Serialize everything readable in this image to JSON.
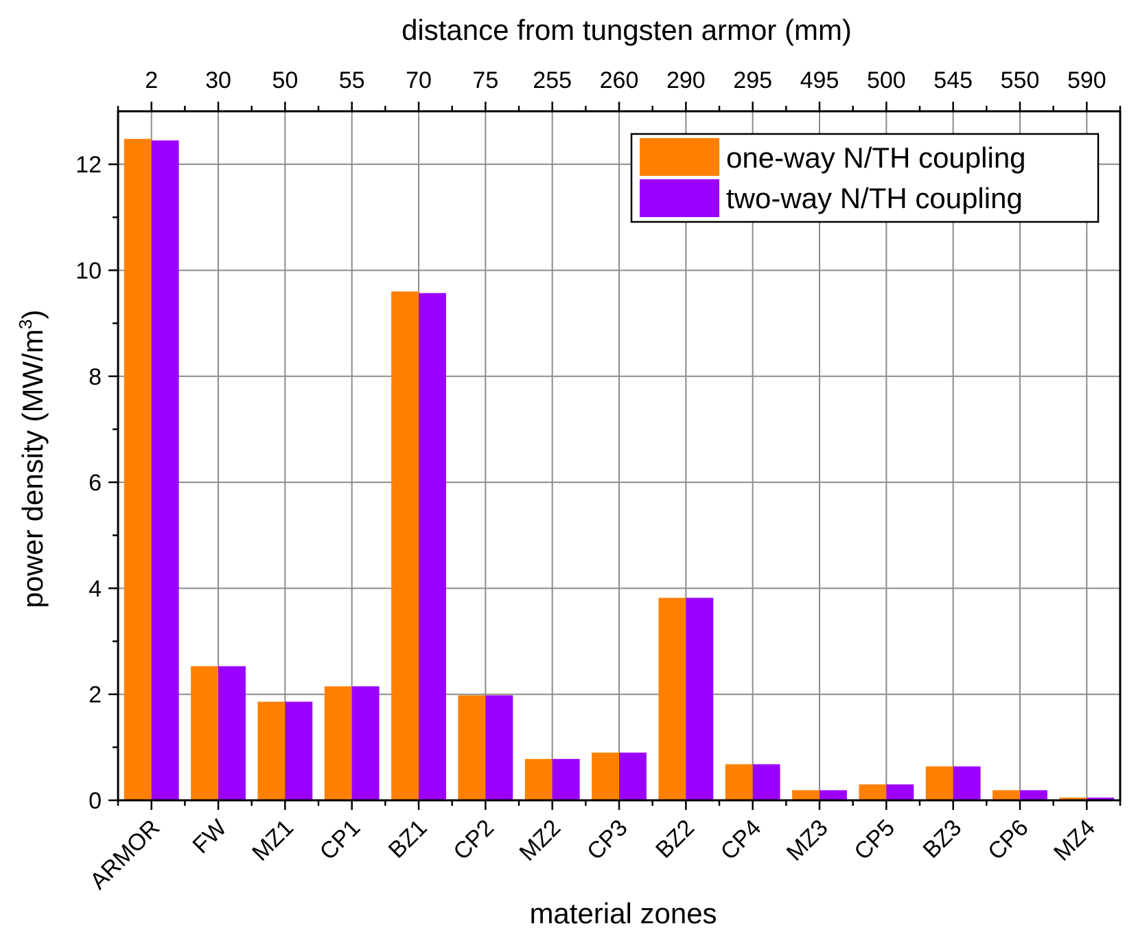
{
  "chart_data": {
    "type": "bar",
    "categories": [
      "ARMOR",
      "FW",
      "MZ1",
      "CP1",
      "BZ1",
      "CP2",
      "MZ2",
      "CP3",
      "BZ2",
      "CP4",
      "MZ3",
      "CP5",
      "BZ3",
      "CP6",
      "MZ4"
    ],
    "top_axis_labels": [
      "2",
      "30",
      "50",
      "55",
      "70",
      "75",
      "255",
      "260",
      "290",
      "295",
      "495",
      "500",
      "545",
      "550",
      "590"
    ],
    "top_axis_title": "distance from tungsten armor (mm)",
    "xlabel": "material zones",
    "ylabel_main": "power density (MW/m",
    "ylabel_sup": "3",
    "ylabel_end": ")",
    "ylim": [
      0,
      13
    ],
    "yticks": [
      0,
      2,
      4,
      6,
      8,
      10,
      12
    ],
    "grid": true,
    "legend_position": "top-right",
    "series": [
      {
        "name": "one-way N/TH coupling",
        "color": "#ff8000",
        "values": [
          12.48,
          2.53,
          1.86,
          2.15,
          9.6,
          1.98,
          0.78,
          0.9,
          3.82,
          0.68,
          0.19,
          0.3,
          0.64,
          0.19,
          0.05
        ]
      },
      {
        "name": "two-way N/TH coupling",
        "color": "#9b00ff",
        "values": [
          12.45,
          2.53,
          1.86,
          2.15,
          9.57,
          1.98,
          0.78,
          0.9,
          3.82,
          0.68,
          0.19,
          0.3,
          0.64,
          0.19,
          0.05
        ]
      }
    ]
  }
}
